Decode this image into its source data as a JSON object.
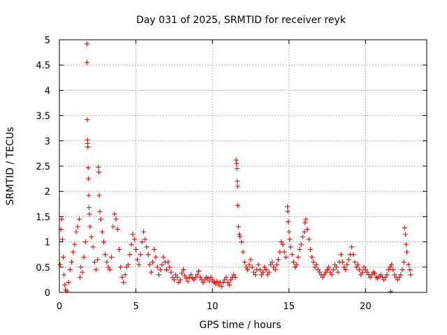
{
  "chart_data": {
    "type": "scatter",
    "title": "Day 031 of 2025, SRMTID for receiver reyk",
    "xlabel": "GPS time / hours",
    "ylabel": "SRMTID / TECUs",
    "xlim": [
      0,
      24
    ],
    "ylim": [
      0,
      5
    ],
    "xticks": [
      0,
      5,
      10,
      15,
      20
    ],
    "xtick_labels": [
      "0",
      "5",
      "10",
      "15",
      "20"
    ],
    "yticks": [
      0,
      0.5,
      1,
      1.5,
      2,
      2.5,
      3,
      3.5,
      4,
      4.5,
      5
    ],
    "ytick_labels": [
      "0",
      "0.5",
      "1",
      "1.5",
      "2",
      "2.5",
      "3",
      "3.5",
      "4",
      "4.5",
      "5"
    ],
    "grid": true,
    "marker": "+",
    "color": "#ff0000",
    "series": [
      {
        "name": "reyk",
        "points": [
          [
            0.05,
            0.55
          ],
          [
            0.1,
            1.25
          ],
          [
            0.15,
            1.45
          ],
          [
            0.2,
            1.05
          ],
          [
            0.25,
            0.7
          ],
          [
            0.3,
            0.35
          ],
          [
            0.35,
            0.15
          ],
          [
            0.4,
            0.05
          ],
          [
            0.5,
            0.03
          ],
          [
            0.6,
            0.2
          ],
          [
            0.7,
            0.45
          ],
          [
            0.8,
            0.6
          ],
          [
            0.9,
            0.8
          ],
          [
            1.0,
            0.95
          ],
          [
            1.1,
            1.2
          ],
          [
            1.2,
            1.3
          ],
          [
            1.3,
            1.45
          ],
          [
            1.35,
            0.3
          ],
          [
            1.4,
            0.5
          ],
          [
            1.5,
            0.4
          ],
          [
            1.6,
            0.7
          ],
          [
            1.7,
            1.0
          ],
          [
            1.8,
            4.92
          ],
          [
            1.8,
            4.55
          ],
          [
            1.82,
            3.42
          ],
          [
            1.84,
            3.02
          ],
          [
            1.85,
            2.95
          ],
          [
            1.86,
            2.88
          ],
          [
            1.88,
            2.47
          ],
          [
            1.9,
            2.25
          ],
          [
            1.92,
            1.92
          ],
          [
            1.94,
            1.68
          ],
          [
            1.96,
            1.55
          ],
          [
            2.0,
            1.3
          ],
          [
            2.1,
            1.1
          ],
          [
            2.2,
            0.9
          ],
          [
            2.3,
            0.6
          ],
          [
            2.4,
            0.45
          ],
          [
            2.5,
            0.65
          ],
          [
            2.55,
            2.48
          ],
          [
            2.58,
            2.38
          ],
          [
            2.6,
            1.92
          ],
          [
            2.65,
            1.6
          ],
          [
            2.7,
            1.45
          ],
          [
            2.8,
            1.2
          ],
          [
            2.9,
            1.0
          ],
          [
            3.0,
            0.75
          ],
          [
            3.1,
            0.6
          ],
          [
            3.2,
            0.5
          ],
          [
            3.3,
            0.45
          ],
          [
            3.4,
            0.7
          ],
          [
            3.5,
            1.3
          ],
          [
            3.6,
            1.55
          ],
          [
            3.7,
            1.45
          ],
          [
            3.8,
            1.25
          ],
          [
            3.9,
            0.85
          ],
          [
            4.0,
            0.5
          ],
          [
            4.1,
            0.3
          ],
          [
            4.2,
            0.2
          ],
          [
            4.3,
            0.35
          ],
          [
            4.4,
            0.5
          ],
          [
            4.5,
            0.55
          ],
          [
            4.6,
            0.75
          ],
          [
            4.7,
            0.95
          ],
          [
            4.8,
            1.15
          ],
          [
            4.9,
            1.05
          ],
          [
            5.0,
            0.85
          ],
          [
            5.1,
            0.65
          ],
          [
            5.2,
            0.55
          ],
          [
            5.3,
            0.75
          ],
          [
            5.4,
            1.0
          ],
          [
            5.5,
            1.2
          ],
          [
            5.6,
            1.05
          ],
          [
            5.7,
            0.9
          ],
          [
            5.8,
            0.75
          ],
          [
            5.9,
            0.55
          ],
          [
            6.0,
            0.4
          ],
          [
            6.1,
            0.6
          ],
          [
            6.2,
            0.85
          ],
          [
            6.3,
            0.7
          ],
          [
            6.4,
            0.5
          ],
          [
            6.5,
            0.35
          ],
          [
            6.6,
            0.45
          ],
          [
            6.7,
            0.55
          ],
          [
            6.8,
            0.7
          ],
          [
            6.9,
            0.6
          ],
          [
            7.0,
            0.45
          ],
          [
            7.1,
            0.6
          ],
          [
            7.2,
            0.5
          ],
          [
            7.3,
            0.4
          ],
          [
            7.4,
            0.3
          ],
          [
            7.5,
            0.25
          ],
          [
            7.6,
            0.35
          ],
          [
            7.7,
            0.3
          ],
          [
            7.8,
            0.2
          ],
          [
            7.9,
            0.25
          ],
          [
            8.0,
            0.38
          ],
          [
            8.1,
            0.45
          ],
          [
            8.2,
            0.33
          ],
          [
            8.3,
            0.28
          ],
          [
            8.4,
            0.22
          ],
          [
            8.5,
            0.3
          ],
          [
            8.6,
            0.35
          ],
          [
            8.7,
            0.28
          ],
          [
            8.8,
            0.25
          ],
          [
            8.9,
            0.3
          ],
          [
            9.0,
            0.35
          ],
          [
            9.1,
            0.42
          ],
          [
            9.2,
            0.3
          ],
          [
            9.3,
            0.25
          ],
          [
            9.4,
            0.2
          ],
          [
            9.5,
            0.25
          ],
          [
            9.6,
            0.3
          ],
          [
            9.7,
            0.28
          ],
          [
            9.8,
            0.22
          ],
          [
            9.9,
            0.3
          ],
          [
            10.0,
            0.25
          ],
          [
            10.1,
            0.2
          ],
          [
            10.2,
            0.18
          ],
          [
            10.3,
            0.22
          ],
          [
            10.4,
            0.15
          ],
          [
            10.5,
            0.2
          ],
          [
            10.6,
            0.12
          ],
          [
            10.7,
            0.2
          ],
          [
            10.8,
            0.25
          ],
          [
            10.9,
            0.3
          ],
          [
            11.0,
            0.2
          ],
          [
            11.1,
            0.15
          ],
          [
            11.2,
            0.25
          ],
          [
            11.3,
            0.3
          ],
          [
            11.4,
            0.35
          ],
          [
            11.5,
            0.3
          ],
          [
            11.55,
            2.62
          ],
          [
            11.58,
            2.55
          ],
          [
            11.6,
            2.45
          ],
          [
            11.62,
            2.2
          ],
          [
            11.64,
            2.1
          ],
          [
            11.66,
            1.72
          ],
          [
            11.7,
            1.3
          ],
          [
            11.75,
            1.15
          ],
          [
            11.8,
            1.1
          ],
          [
            11.9,
            1.0
          ],
          [
            12.0,
            0.8
          ],
          [
            12.1,
            0.6
          ],
          [
            12.2,
            0.5
          ],
          [
            12.3,
            0.45
          ],
          [
            12.4,
            0.55
          ],
          [
            12.5,
            0.65
          ],
          [
            12.6,
            0.5
          ],
          [
            12.7,
            0.4
          ],
          [
            12.8,
            0.35
          ],
          [
            12.9,
            0.45
          ],
          [
            13.0,
            0.55
          ],
          [
            13.1,
            0.45
          ],
          [
            13.2,
            0.35
          ],
          [
            13.3,
            0.4
          ],
          [
            13.4,
            0.5
          ],
          [
            13.5,
            0.45
          ],
          [
            13.6,
            0.35
          ],
          [
            13.7,
            0.4
          ],
          [
            13.8,
            0.55
          ],
          [
            13.9,
            0.6
          ],
          [
            14.0,
            0.5
          ],
          [
            14.1,
            0.45
          ],
          [
            14.2,
            0.55
          ],
          [
            14.3,
            0.65
          ],
          [
            14.4,
            0.8
          ],
          [
            14.5,
            1.0
          ],
          [
            14.6,
            0.95
          ],
          [
            14.7,
            0.8
          ],
          [
            14.8,
            0.7
          ],
          [
            14.9,
            1.7
          ],
          [
            14.92,
            1.6
          ],
          [
            14.95,
            1.4
          ],
          [
            15.0,
            1.2
          ],
          [
            15.05,
            1.05
          ],
          [
            15.1,
            0.9
          ],
          [
            15.2,
            0.75
          ],
          [
            15.3,
            0.6
          ],
          [
            15.4,
            0.5
          ],
          [
            15.5,
            0.55
          ],
          [
            15.6,
            0.7
          ],
          [
            15.7,
            0.85
          ],
          [
            15.8,
            0.95
          ],
          [
            15.9,
            1.1
          ],
          [
            16.0,
            1.2
          ],
          [
            16.05,
            1.38
          ],
          [
            16.1,
            1.45
          ],
          [
            16.2,
            1.25
          ],
          [
            16.3,
            1.05
          ],
          [
            16.4,
            0.85
          ],
          [
            16.5,
            0.7
          ],
          [
            16.6,
            0.6
          ],
          [
            16.7,
            0.5
          ],
          [
            16.8,
            0.55
          ],
          [
            16.9,
            0.45
          ],
          [
            17.0,
            0.4
          ],
          [
            17.1,
            0.35
          ],
          [
            17.2,
            0.3
          ],
          [
            17.3,
            0.35
          ],
          [
            17.4,
            0.4
          ],
          [
            17.5,
            0.45
          ],
          [
            17.6,
            0.5
          ],
          [
            17.7,
            0.4
          ],
          [
            17.8,
            0.35
          ],
          [
            17.9,
            0.45
          ],
          [
            18.0,
            0.55
          ],
          [
            18.1,
            0.5
          ],
          [
            18.2,
            0.4
          ],
          [
            18.3,
            0.6
          ],
          [
            18.4,
            0.75
          ],
          [
            18.5,
            0.6
          ],
          [
            18.6,
            0.5
          ],
          [
            18.7,
            0.45
          ],
          [
            18.8,
            0.55
          ],
          [
            18.9,
            0.65
          ],
          [
            19.0,
            0.75
          ],
          [
            19.1,
            0.9
          ],
          [
            19.2,
            0.75
          ],
          [
            19.3,
            0.6
          ],
          [
            19.4,
            0.5
          ],
          [
            19.5,
            0.55
          ],
          [
            19.6,
            0.45
          ],
          [
            19.7,
            0.35
          ],
          [
            19.8,
            0.4
          ],
          [
            19.9,
            0.5
          ],
          [
            20.0,
            0.45
          ],
          [
            20.1,
            0.4
          ],
          [
            20.2,
            0.35
          ],
          [
            20.3,
            0.3
          ],
          [
            20.4,
            0.35
          ],
          [
            20.5,
            0.4
          ],
          [
            20.6,
            0.38
          ],
          [
            20.7,
            0.3
          ],
          [
            20.8,
            0.28
          ],
          [
            20.9,
            0.32
          ],
          [
            21.0,
            0.35
          ],
          [
            21.1,
            0.3
          ],
          [
            21.2,
            0.25
          ],
          [
            21.3,
            0.3
          ],
          [
            21.4,
            0.35
          ],
          [
            21.5,
            0.45
          ],
          [
            21.6,
            0.5
          ],
          [
            21.65,
            0.02
          ],
          [
            21.7,
            0.55
          ],
          [
            21.8,
            0.45
          ],
          [
            21.9,
            0.35
          ],
          [
            22.0,
            0.3
          ],
          [
            22.1,
            0.25
          ],
          [
            22.2,
            0.3
          ],
          [
            22.3,
            0.35
          ],
          [
            22.4,
            0.45
          ],
          [
            22.5,
            0.6
          ],
          [
            22.55,
            1.28
          ],
          [
            22.6,
            1.15
          ],
          [
            22.65,
            0.95
          ],
          [
            22.7,
            0.8
          ],
          [
            22.8,
            0.55
          ],
          [
            22.9,
            0.45
          ],
          [
            22.95,
            0.35
          ]
        ]
      }
    ]
  }
}
